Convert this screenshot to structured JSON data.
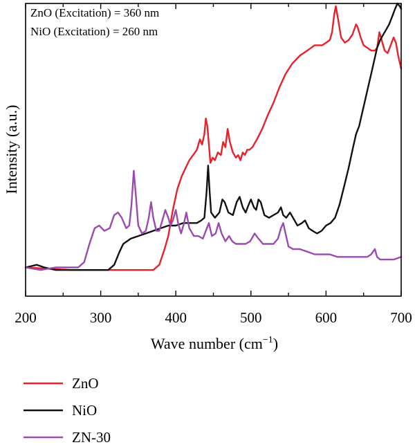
{
  "chart_data": {
    "type": "line",
    "title": "",
    "xlabel": "Wave number (cm",
    "xlabel_sup": "−1",
    "xlabel_close": ")",
    "ylabel": "Intensity (a.u.)",
    "xlim": [
      200,
      700
    ],
    "ylim": [
      -0.1,
      1.02
    ],
    "x_ticks": [
      "200",
      "300",
      "400",
      "500",
      "600",
      "700"
    ],
    "grid": false,
    "legend_position": "bottom-left-outside",
    "annotations": [
      "ZnO (Excitation) = 360 nm",
      "NiO (Excitation) = 260 nm"
    ],
    "series": [
      {
        "name": "ZnO",
        "color": "#e8202a",
        "points": [
          [
            200,
            0.01
          ],
          [
            260,
            0.0
          ],
          [
            300,
            0.0
          ],
          [
            330,
            0.0
          ],
          [
            360,
            0.0
          ],
          [
            370,
            0.0
          ],
          [
            378,
            0.02
          ],
          [
            385,
            0.08
          ],
          [
            390,
            0.13
          ],
          [
            396,
            0.23
          ],
          [
            402,
            0.31
          ],
          [
            408,
            0.36
          ],
          [
            413,
            0.39
          ],
          [
            418,
            0.42
          ],
          [
            423,
            0.44
          ],
          [
            428,
            0.46
          ],
          [
            432,
            0.5
          ],
          [
            435,
            0.48
          ],
          [
            438,
            0.52
          ],
          [
            440,
            0.58
          ],
          [
            442,
            0.55
          ],
          [
            444,
            0.48
          ],
          [
            446,
            0.41
          ],
          [
            449,
            0.43
          ],
          [
            452,
            0.42
          ],
          [
            456,
            0.45
          ],
          [
            460,
            0.44
          ],
          [
            463,
            0.49
          ],
          [
            466,
            0.47
          ],
          [
            469,
            0.54
          ],
          [
            472,
            0.49
          ],
          [
            476,
            0.45
          ],
          [
            480,
            0.43
          ],
          [
            483,
            0.44
          ],
          [
            486,
            0.42
          ],
          [
            489,
            0.45
          ],
          [
            492,
            0.44
          ],
          [
            495,
            0.46
          ],
          [
            498,
            0.46
          ],
          [
            502,
            0.47
          ],
          [
            508,
            0.5
          ],
          [
            515,
            0.54
          ],
          [
            522,
            0.59
          ],
          [
            530,
            0.64
          ],
          [
            538,
            0.7
          ],
          [
            546,
            0.75
          ],
          [
            555,
            0.79
          ],
          [
            565,
            0.82
          ],
          [
            575,
            0.84
          ],
          [
            580,
            0.85
          ],
          [
            585,
            0.86
          ],
          [
            590,
            0.86
          ],
          [
            595,
            0.86
          ],
          [
            600,
            0.87
          ],
          [
            605,
            0.88
          ],
          [
            608,
            0.91
          ],
          [
            611,
            0.98
          ],
          [
            613,
            1.01
          ],
          [
            616,
            0.96
          ],
          [
            620,
            0.89
          ],
          [
            625,
            0.87
          ],
          [
            630,
            0.88
          ],
          [
            635,
            0.9
          ],
          [
            640,
            0.94
          ],
          [
            642,
            0.93
          ],
          [
            646,
            0.89
          ],
          [
            650,
            0.86
          ],
          [
            655,
            0.85
          ],
          [
            660,
            0.84
          ],
          [
            665,
            0.84
          ],
          [
            668,
            0.85
          ],
          [
            671,
            0.91
          ],
          [
            674,
            0.88
          ],
          [
            678,
            0.84
          ],
          [
            682,
            0.83
          ],
          [
            686,
            0.86
          ],
          [
            690,
            0.89
          ],
          [
            693,
            0.87
          ],
          [
            696,
            0.82
          ],
          [
            700,
            0.77
          ]
        ]
      },
      {
        "name": "NiO",
        "color": "#111111",
        "points": [
          [
            200,
            0.01
          ],
          [
            215,
            0.02
          ],
          [
            225,
            0.01
          ],
          [
            240,
            0.0
          ],
          [
            260,
            0.0
          ],
          [
            280,
            0.0
          ],
          [
            300,
            0.0
          ],
          [
            310,
            0.0
          ],
          [
            318,
            0.02
          ],
          [
            325,
            0.07
          ],
          [
            330,
            0.1
          ],
          [
            340,
            0.12
          ],
          [
            350,
            0.13
          ],
          [
            360,
            0.14
          ],
          [
            370,
            0.15
          ],
          [
            380,
            0.16
          ],
          [
            390,
            0.17
          ],
          [
            400,
            0.17
          ],
          [
            410,
            0.18
          ],
          [
            420,
            0.18
          ],
          [
            428,
            0.18
          ],
          [
            434,
            0.19
          ],
          [
            438,
            0.2
          ],
          [
            441,
            0.3
          ],
          [
            443,
            0.4
          ],
          [
            445,
            0.3
          ],
          [
            447,
            0.22
          ],
          [
            452,
            0.2
          ],
          [
            458,
            0.22
          ],
          [
            462,
            0.27
          ],
          [
            465,
            0.26
          ],
          [
            470,
            0.22
          ],
          [
            476,
            0.21
          ],
          [
            481,
            0.26
          ],
          [
            485,
            0.28
          ],
          [
            489,
            0.24
          ],
          [
            493,
            0.22
          ],
          [
            497,
            0.25
          ],
          [
            500,
            0.27
          ],
          [
            504,
            0.24
          ],
          [
            507,
            0.23
          ],
          [
            510,
            0.27
          ],
          [
            513,
            0.26
          ],
          [
            518,
            0.21
          ],
          [
            524,
            0.2
          ],
          [
            530,
            0.21
          ],
          [
            536,
            0.22
          ],
          [
            540,
            0.24
          ],
          [
            543,
            0.21
          ],
          [
            547,
            0.2
          ],
          [
            552,
            0.22
          ],
          [
            556,
            0.2
          ],
          [
            562,
            0.17
          ],
          [
            568,
            0.18
          ],
          [
            572,
            0.19
          ],
          [
            577,
            0.16
          ],
          [
            582,
            0.15
          ],
          [
            588,
            0.14
          ],
          [
            594,
            0.15
          ],
          [
            600,
            0.17
          ],
          [
            606,
            0.18
          ],
          [
            612,
            0.2
          ],
          [
            618,
            0.25
          ],
          [
            624,
            0.32
          ],
          [
            630,
            0.39
          ],
          [
            636,
            0.47
          ],
          [
            640,
            0.52
          ],
          [
            644,
            0.55
          ],
          [
            648,
            0.6
          ],
          [
            652,
            0.65
          ],
          [
            656,
            0.7
          ],
          [
            660,
            0.75
          ],
          [
            664,
            0.8
          ],
          [
            668,
            0.85
          ],
          [
            672,
            0.88
          ],
          [
            676,
            0.9
          ],
          [
            680,
            0.92
          ],
          [
            684,
            0.94
          ],
          [
            688,
            0.97
          ],
          [
            692,
            1.0
          ],
          [
            695,
            1.02
          ],
          [
            698,
            1.01
          ],
          [
            700,
            1.0
          ]
        ]
      },
      {
        "name": "ZN-30",
        "color": "#9b4ab0",
        "points": [
          [
            200,
            0.01
          ],
          [
            220,
            0.0
          ],
          [
            240,
            0.01
          ],
          [
            260,
            0.01
          ],
          [
            270,
            0.01
          ],
          [
            278,
            0.03
          ],
          [
            285,
            0.1
          ],
          [
            292,
            0.16
          ],
          [
            298,
            0.17
          ],
          [
            305,
            0.15
          ],
          [
            312,
            0.16
          ],
          [
            318,
            0.21
          ],
          [
            323,
            0.22
          ],
          [
            328,
            0.2
          ],
          [
            334,
            0.16
          ],
          [
            338,
            0.17
          ],
          [
            341,
            0.25
          ],
          [
            344,
            0.38
          ],
          [
            347,
            0.28
          ],
          [
            350,
            0.17
          ],
          [
            355,
            0.14
          ],
          [
            360,
            0.15
          ],
          [
            364,
            0.2
          ],
          [
            367,
            0.26
          ],
          [
            370,
            0.2
          ],
          [
            374,
            0.15
          ],
          [
            378,
            0.15
          ],
          [
            382,
            0.19
          ],
          [
            386,
            0.23
          ],
          [
            390,
            0.2
          ],
          [
            393,
            0.17
          ],
          [
            396,
            0.19
          ],
          [
            400,
            0.23
          ],
          [
            403,
            0.18
          ],
          [
            407,
            0.14
          ],
          [
            411,
            0.18
          ],
          [
            414,
            0.22
          ],
          [
            418,
            0.16
          ],
          [
            424,
            0.13
          ],
          [
            430,
            0.13
          ],
          [
            436,
            0.12
          ],
          [
            440,
            0.15
          ],
          [
            444,
            0.18
          ],
          [
            448,
            0.13
          ],
          [
            453,
            0.14
          ],
          [
            457,
            0.18
          ],
          [
            461,
            0.14
          ],
          [
            466,
            0.11
          ],
          [
            471,
            0.13
          ],
          [
            475,
            0.11
          ],
          [
            480,
            0.1
          ],
          [
            487,
            0.1
          ],
          [
            493,
            0.1
          ],
          [
            499,
            0.11
          ],
          [
            505,
            0.14
          ],
          [
            510,
            0.12
          ],
          [
            516,
            0.1
          ],
          [
            522,
            0.1
          ],
          [
            530,
            0.1
          ],
          [
            536,
            0.12
          ],
          [
            540,
            0.16
          ],
          [
            543,
            0.18
          ],
          [
            546,
            0.14
          ],
          [
            550,
            0.09
          ],
          [
            556,
            0.08
          ],
          [
            565,
            0.08
          ],
          [
            575,
            0.07
          ],
          [
            585,
            0.06
          ],
          [
            595,
            0.06
          ],
          [
            605,
            0.06
          ],
          [
            615,
            0.05
          ],
          [
            625,
            0.05
          ],
          [
            635,
            0.05
          ],
          [
            645,
            0.05
          ],
          [
            655,
            0.05
          ],
          [
            660,
            0.06
          ],
          [
            665,
            0.08
          ],
          [
            668,
            0.05
          ],
          [
            672,
            0.04
          ],
          [
            680,
            0.04
          ],
          [
            690,
            0.04
          ],
          [
            700,
            0.05
          ]
        ]
      }
    ]
  }
}
